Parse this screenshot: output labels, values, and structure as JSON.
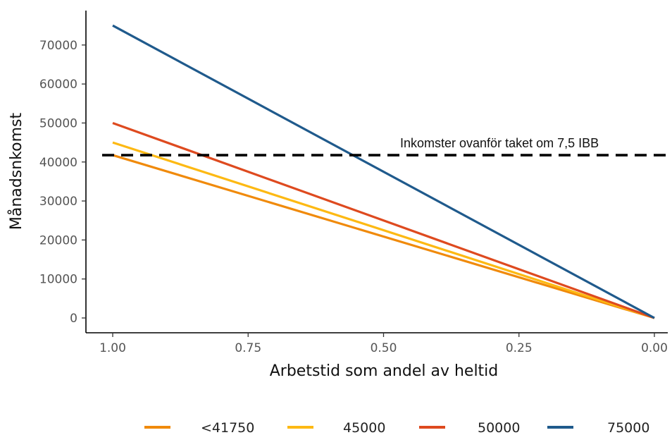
{
  "chart_data": {
    "type": "line",
    "xlabel": "Arbetstid som andel av heltid",
    "ylabel": "Månadsnkomst",
    "x_reversed": true,
    "xlim": [
      1.0,
      0.0
    ],
    "ylim": [
      0,
      75000
    ],
    "x_ticks": [
      {
        "value": 1.0,
        "label": "1.00"
      },
      {
        "value": 0.75,
        "label": "0.75"
      },
      {
        "value": 0.5,
        "label": "0.50"
      },
      {
        "value": 0.25,
        "label": "0.25"
      },
      {
        "value": 0.0,
        "label": "0.00"
      }
    ],
    "y_ticks": [
      {
        "value": 0,
        "label": "0"
      },
      {
        "value": 10000,
        "label": "10000"
      },
      {
        "value": 20000,
        "label": "20000"
      },
      {
        "value": 30000,
        "label": "30000"
      },
      {
        "value": 40000,
        "label": "40000"
      },
      {
        "value": 50000,
        "label": "50000"
      },
      {
        "value": 60000,
        "label": "60000"
      },
      {
        "value": 70000,
        "label": "70000"
      }
    ],
    "x": [
      1.0,
      0.0
    ],
    "series": [
      {
        "name": "<41750",
        "color": "#F08A0B",
        "values": [
          41750,
          0
        ]
      },
      {
        "name": "45000",
        "color": "#FDB913",
        "values": [
          45000,
          0
        ]
      },
      {
        "name": "50000",
        "color": "#DE4A1F",
        "values": [
          50000,
          0
        ]
      },
      {
        "name": "75000",
        "color": "#1F5A8C",
        "values": [
          75000,
          0
        ]
      }
    ],
    "reference_line": {
      "y": 41750,
      "style": "dashed",
      "color": "#000000"
    },
    "annotation": {
      "text": "Inkomster ovanför taket om 7,5 IBB",
      "x": 0.4,
      "y": 44500
    },
    "grid": false,
    "legend_position": "bottom"
  }
}
